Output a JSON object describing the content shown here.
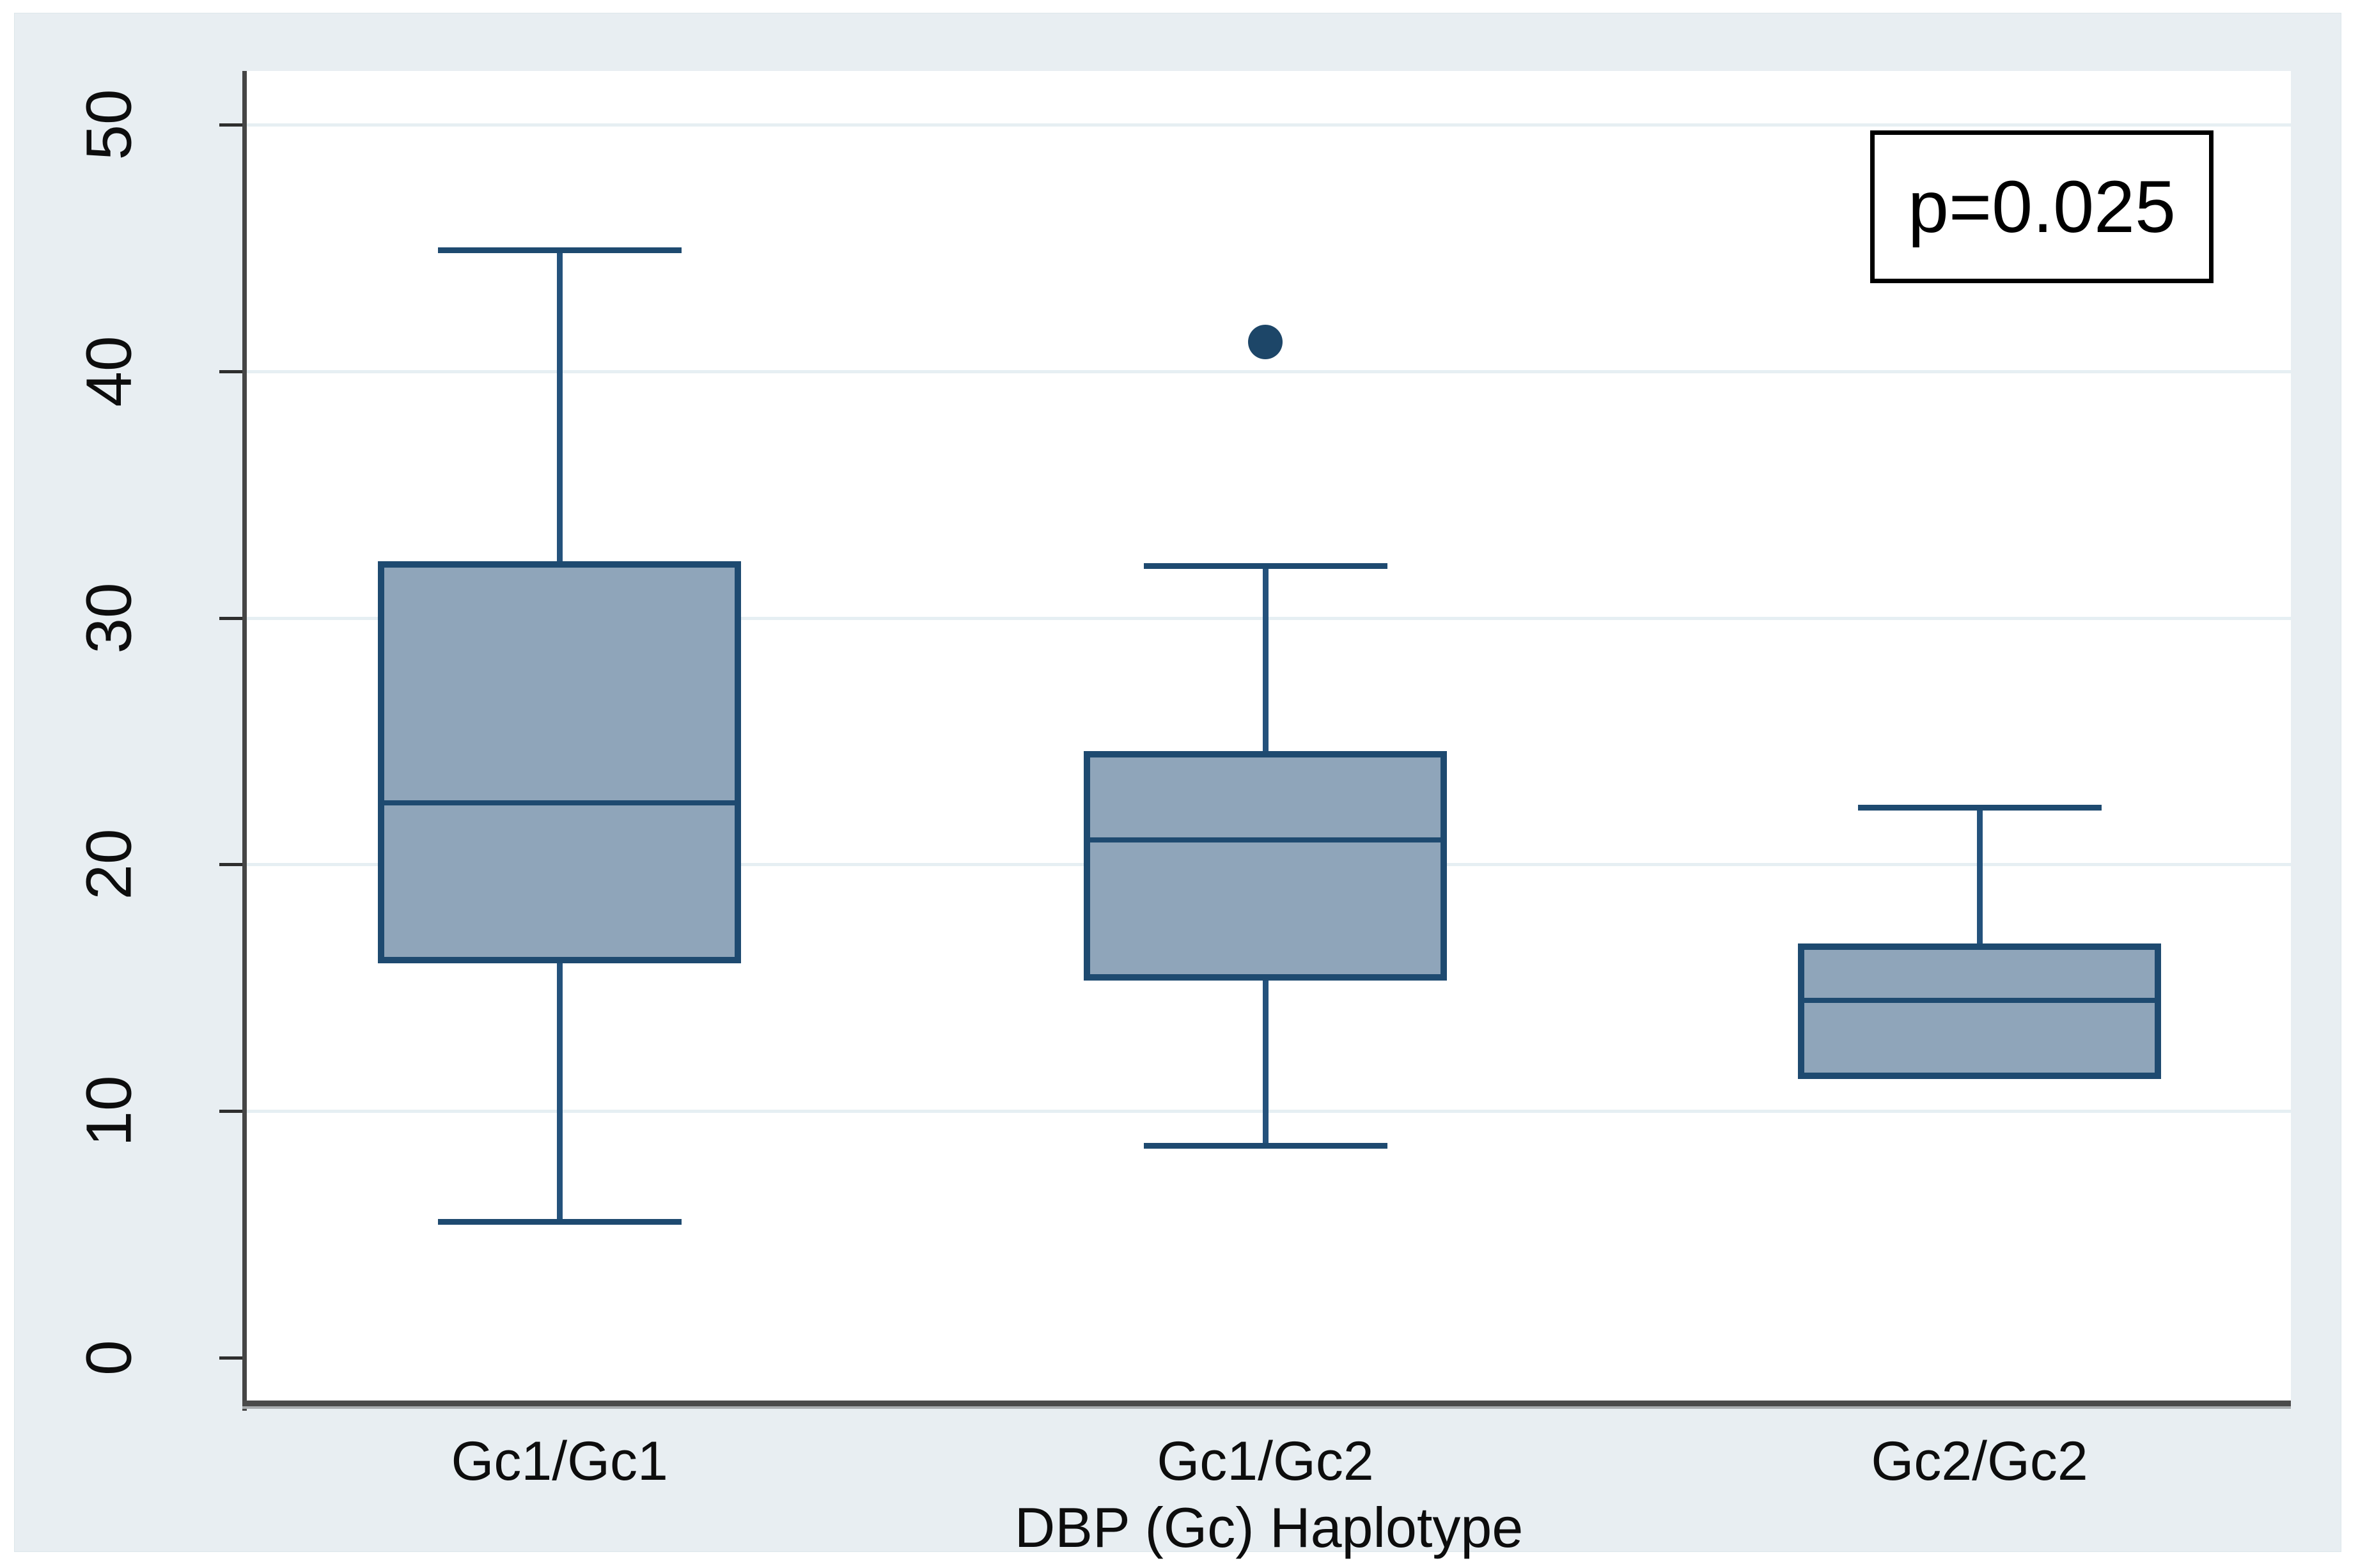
{
  "chart_data": {
    "type": "box",
    "title": "",
    "xlabel": "DBP (Gc) Haplotype",
    "ylabel": "",
    "ylim": [
      -1.74,
      52.18
    ],
    "yticks": [
      0,
      10,
      20,
      30,
      40,
      50
    ],
    "grid": true,
    "categories": [
      "Gc1/Gc1",
      "Gc1/Gc2",
      "Gc2/Gc2"
    ],
    "boxes": [
      {
        "category": "Gc1/Gc1",
        "whisker_low": 5.5,
        "q1": 16.0,
        "median": 22.5,
        "q3": 32.3,
        "whisker_high": 44.9,
        "outliers": []
      },
      {
        "category": "Gc1/Gc2",
        "whisker_low": 8.6,
        "q1": 15.3,
        "median": 21.0,
        "q3": 24.6,
        "whisker_high": 32.1,
        "outliers": [
          41.2
        ]
      },
      {
        "category": "Gc2/Gc2",
        "whisker_low": 11.3,
        "q1": 11.3,
        "median": 14.5,
        "q3": 16.8,
        "whisker_high": 22.3,
        "outliers": []
      }
    ],
    "annotation": "p=0.025",
    "colors": {
      "box_fill": "#8fa5ba",
      "box_border": "#1e4a70",
      "whisker": "#24527c",
      "outlier": "#1d4668",
      "panel_background": "#e8eef2",
      "plot_background": "#ffffff",
      "gridline": "#e6eff3",
      "axis_line": "#454545",
      "text": "#0d0d0d"
    }
  }
}
